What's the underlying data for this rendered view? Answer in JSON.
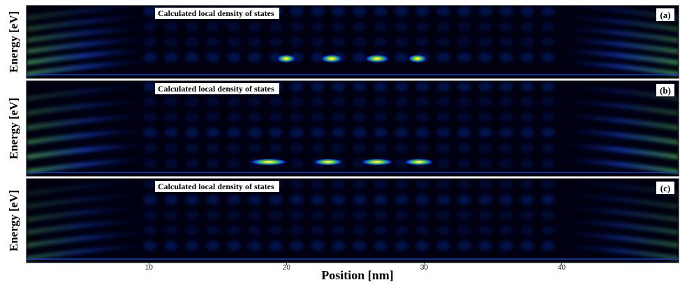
{
  "panels": [
    {
      "label": "(a)",
      "title": "Calculated local density of states",
      "ylabel": "Energy [eV]"
    },
    {
      "label": "(b)",
      "title": "Calculated local density of states",
      "ylabel": "Energy [eV]"
    },
    {
      "label": "(c)",
      "title": "Calculated local density of states",
      "ylabel": "Energy [eV]"
    }
  ],
  "xaxis": {
    "label": "Position [nm]",
    "xlim": [
      1.1,
      48.5
    ],
    "xticks": [
      10,
      20,
      30,
      40
    ]
  }
}
